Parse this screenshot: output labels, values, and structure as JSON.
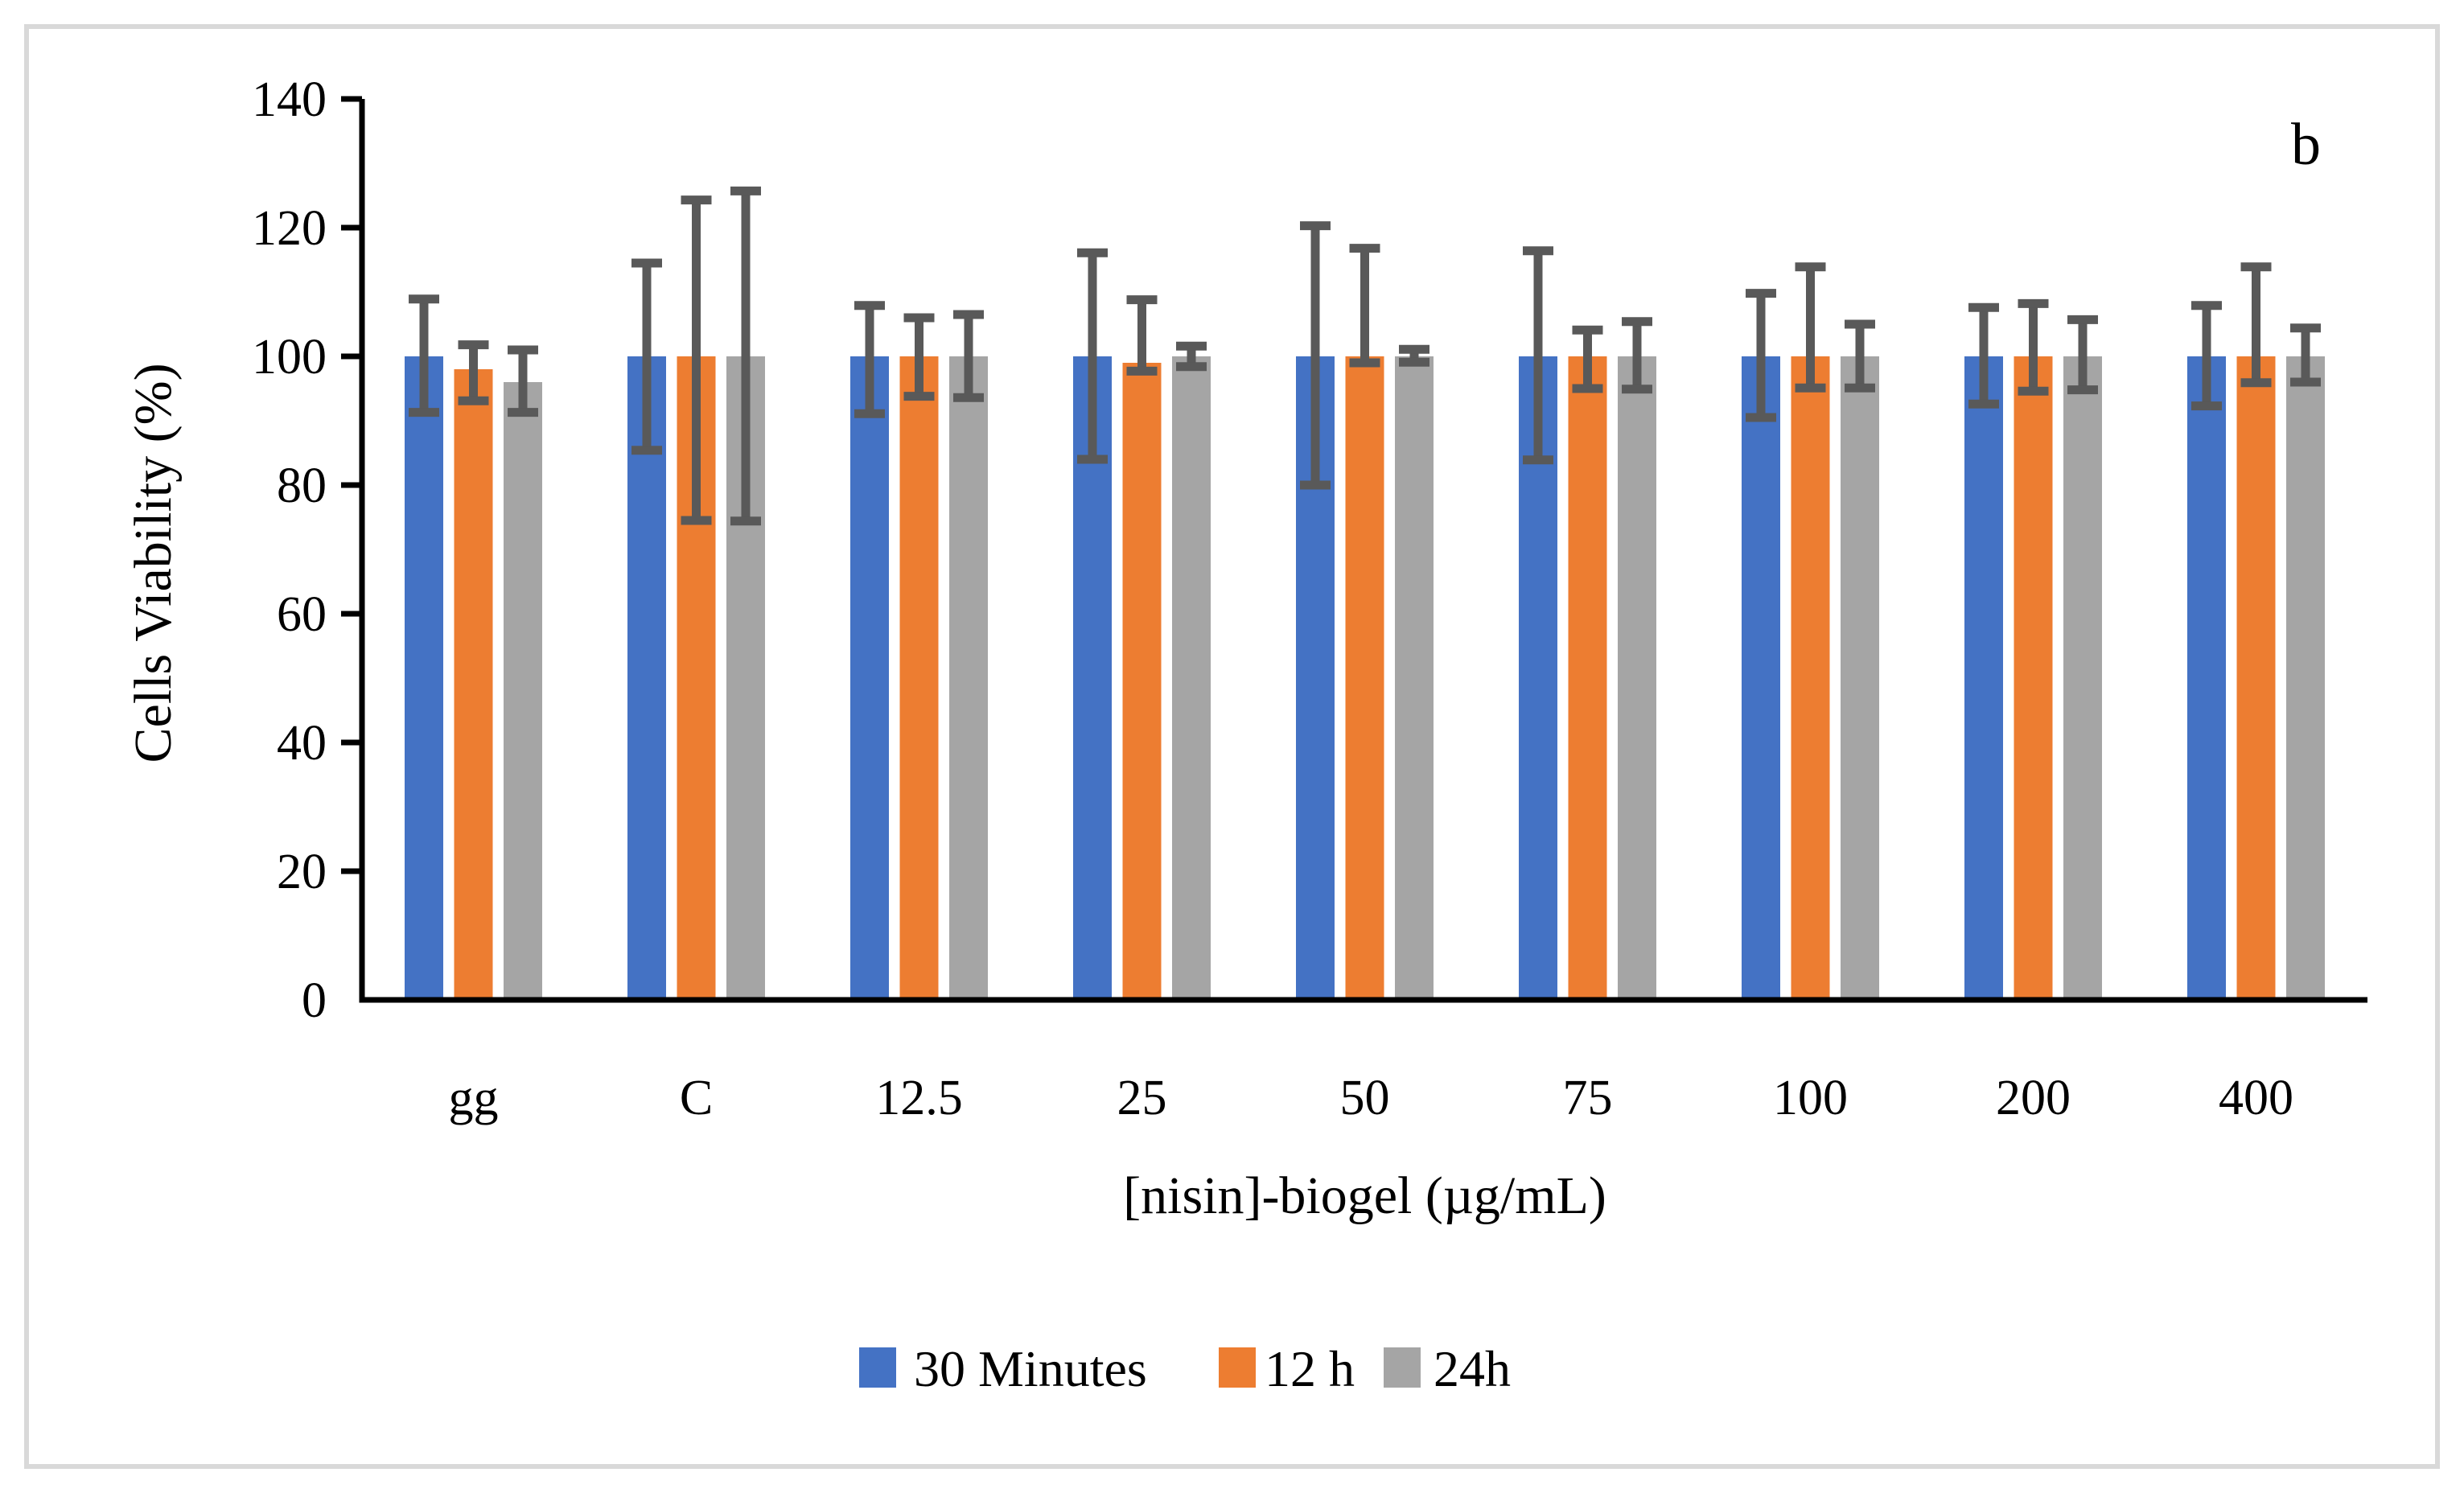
{
  "figure_label": "b",
  "colors": {
    "frame": "#D9D9D9",
    "axis": "#000000",
    "error_bar": "#595959",
    "background": "#FFFFFF",
    "series": [
      "#4472C4",
      "#ED7D31",
      "#A5A5A5"
    ]
  },
  "chart_data": {
    "type": "bar",
    "title": "",
    "xlabel": "[nisin]-biogel (µg/mL)",
    "ylabel": "Cells Viability (%)",
    "ylim": [
      0,
      140
    ],
    "ytick_interval": 20,
    "ytick_labels": [
      "0",
      "20",
      "40",
      "60",
      "80",
      "100",
      "120",
      "140"
    ],
    "grid": false,
    "legend_position": "bottom",
    "categories": [
      "gg",
      "C",
      "12.5",
      "25",
      "50",
      "75",
      "100",
      "200",
      "400"
    ],
    "series": [
      {
        "name": "30 Minutes",
        "color": "#4472C4",
        "values": [
          100,
          100,
          100,
          100,
          100,
          100,
          100,
          100,
          100
        ],
        "error_top": [
          108.9,
          114.5,
          107.9,
          116.1,
          120.3,
          116.4,
          109.8,
          107.6,
          107.9
        ],
        "error_bottom": [
          91.3,
          85.4,
          91.1,
          84.0,
          80.0,
          83.9,
          90.5,
          92.6,
          92.3
        ]
      },
      {
        "name": "12 h",
        "color": "#ED7D31",
        "values": [
          98,
          100,
          100,
          99,
          100,
          100,
          100,
          100,
          100
        ],
        "error_top": [
          101.8,
          124.3,
          106.0,
          108.8,
          116.8,
          104.1,
          113.9,
          108.2,
          113.9
        ],
        "error_bottom": [
          93.1,
          74.5,
          93.8,
          97.7,
          99.0,
          95.0,
          95.1,
          94.6,
          95.9
        ]
      },
      {
        "name": "24h",
        "color": "#A5A5A5",
        "values": [
          96,
          100,
          100,
          100,
          100,
          100,
          100,
          100,
          100
        ],
        "error_top": [
          101.0,
          125.7,
          106.5,
          101.6,
          101.1,
          105.4,
          105.0,
          105.7,
          104.4
        ],
        "error_bottom": [
          91.3,
          74.4,
          93.6,
          98.4,
          99.1,
          94.9,
          95.1,
          94.8,
          96.0
        ]
      }
    ]
  }
}
